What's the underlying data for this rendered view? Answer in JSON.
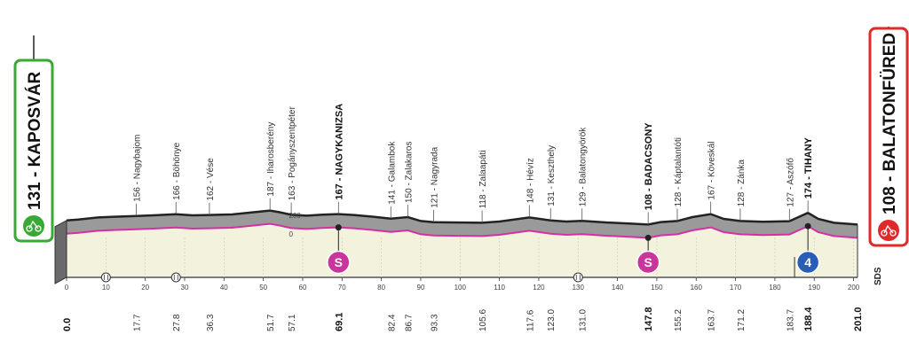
{
  "chart_data": {
    "type": "area",
    "title": "",
    "xlabel": "",
    "ylabel": "",
    "xlim": [
      0,
      201.0
    ],
    "x_ticks": [
      0,
      10,
      20,
      30,
      40,
      50,
      60,
      70,
      80,
      90,
      100,
      110,
      120,
      130,
      140,
      150,
      160,
      170,
      180,
      190,
      200
    ],
    "y_ticks": [
      "200",
      "0"
    ],
    "start": {
      "label": "131 - KAPOSVÁR",
      "color": "#3aa835"
    },
    "finish": {
      "label": "108 - BALATONFÜRED",
      "color": "#e02a2a"
    },
    "profile": [
      [
        0,
        131
      ],
      [
        3,
        136
      ],
      [
        8,
        148
      ],
      [
        12,
        152
      ],
      [
        17.7,
        156
      ],
      [
        22,
        160
      ],
      [
        27.8,
        166
      ],
      [
        32,
        160
      ],
      [
        36.3,
        162
      ],
      [
        42,
        165
      ],
      [
        47,
        176
      ],
      [
        51.7,
        187
      ],
      [
        54,
        178
      ],
      [
        57.1,
        163
      ],
      [
        61,
        158
      ],
      [
        65,
        164
      ],
      [
        69.1,
        167
      ],
      [
        73,
        162
      ],
      [
        78,
        152
      ],
      [
        82.4,
        141
      ],
      [
        86.7,
        150
      ],
      [
        90,
        128
      ],
      [
        93.3,
        121
      ],
      [
        98,
        120
      ],
      [
        105.6,
        118
      ],
      [
        110,
        125
      ],
      [
        117.6,
        148
      ],
      [
        123,
        131
      ],
      [
        127,
        125
      ],
      [
        131,
        129
      ],
      [
        137,
        120
      ],
      [
        143,
        114
      ],
      [
        147.8,
        108
      ],
      [
        151,
        122
      ],
      [
        155.2,
        128
      ],
      [
        159,
        150
      ],
      [
        163.7,
        167
      ],
      [
        167,
        140
      ],
      [
        171.2,
        128
      ],
      [
        177,
        124
      ],
      [
        183.7,
        127
      ],
      [
        186,
        150
      ],
      [
        188.4,
        174
      ],
      [
        191,
        140
      ],
      [
        195,
        118
      ],
      [
        201,
        108
      ]
    ],
    "places": [
      {
        "km": 17.7,
        "alt": 156,
        "name": "156 - Nagybajom",
        "major": false
      },
      {
        "km": 27.8,
        "alt": 166,
        "name": "166 - Böhönye",
        "major": false
      },
      {
        "km": 36.3,
        "alt": 162,
        "name": "162 - Vése",
        "major": false
      },
      {
        "km": 51.7,
        "alt": 187,
        "name": "187 - Iharosberény",
        "major": false
      },
      {
        "km": 57.1,
        "alt": 163,
        "name": "163 - Pogányszentpéter",
        "major": false
      },
      {
        "km": 69.1,
        "alt": 167,
        "name": "167 - NAGYKANIZSA",
        "major": true
      },
      {
        "km": 82.4,
        "alt": 141,
        "name": "141 - Galambok",
        "major": false
      },
      {
        "km": 86.7,
        "alt": 150,
        "name": "150 - Zalakaros",
        "major": false
      },
      {
        "km": 93.3,
        "alt": 121,
        "name": "121 - Nagyrada",
        "major": false
      },
      {
        "km": 105.6,
        "alt": 118,
        "name": "118 - Zalaapáti",
        "major": false
      },
      {
        "km": 117.6,
        "alt": 148,
        "name": "148 - Hévíz",
        "major": false
      },
      {
        "km": 123.0,
        "alt": 131,
        "name": "131 - Keszthely",
        "major": false
      },
      {
        "km": 131.0,
        "alt": 129,
        "name": "129 - Balatongyörök",
        "major": false
      },
      {
        "km": 147.8,
        "alt": 108,
        "name": "108 - BADACSONY",
        "major": true
      },
      {
        "km": 155.2,
        "alt": 128,
        "name": "128 - Káptalantóti",
        "major": false
      },
      {
        "km": 163.7,
        "alt": 167,
        "name": "167 - Köveskál",
        "major": false
      },
      {
        "km": 171.2,
        "alt": 128,
        "name": "128 - Zánka",
        "major": false
      },
      {
        "km": 183.7,
        "alt": 127,
        "name": "127 - Aszófő",
        "major": false
      },
      {
        "km": 188.4,
        "alt": 174,
        "name": "174 - TIHANY",
        "major": true
      }
    ],
    "distance_labels": [
      {
        "km": 0,
        "text": "0.0",
        "major": true
      },
      {
        "km": 17.7,
        "text": "17.7",
        "major": false
      },
      {
        "km": 27.8,
        "text": "27.8",
        "major": false
      },
      {
        "km": 36.3,
        "text": "36.3",
        "major": false
      },
      {
        "km": 51.7,
        "text": "51.7",
        "major": false
      },
      {
        "km": 57.1,
        "text": "57.1",
        "major": false
      },
      {
        "km": 69.1,
        "text": "69.1",
        "major": true
      },
      {
        "km": 82.4,
        "text": "82.4",
        "major": false
      },
      {
        "km": 86.7,
        "text": "86.7",
        "major": false
      },
      {
        "km": 93.3,
        "text": "93.3",
        "major": false
      },
      {
        "km": 105.6,
        "text": "105.6",
        "major": false
      },
      {
        "km": 117.6,
        "text": "117.6",
        "major": false
      },
      {
        "km": 123.0,
        "text": "123.0",
        "major": false
      },
      {
        "km": 131.0,
        "text": "131.0",
        "major": false
      },
      {
        "km": 147.8,
        "text": "147.8",
        "major": true
      },
      {
        "km": 155.2,
        "text": "155.2",
        "major": false
      },
      {
        "km": 163.7,
        "text": "163.7",
        "major": false
      },
      {
        "km": 171.2,
        "text": "171.2",
        "major": false
      },
      {
        "km": 183.7,
        "text": "183.7",
        "major": false
      },
      {
        "km": 188.4,
        "text": "188.4",
        "major": true
      },
      {
        "km": 201.0,
        "text": "201.0",
        "major": true
      }
    ],
    "sprints": [
      {
        "km": 69.1,
        "label": "S",
        "color": "#c8359b"
      },
      {
        "km": 147.8,
        "label": "S",
        "color": "#c8359b"
      }
    ],
    "climbs": [
      {
        "km": 188.4,
        "label": "4",
        "color": "#2a5db5"
      }
    ],
    "refreshments": [
      10,
      27.8,
      130
    ],
    "feed_zone_km": 185,
    "brand": "SDS",
    "colors": {
      "profile_fill": "#9a9a9a",
      "ground_fill": "#f3f3dd",
      "road": "#d62fa6",
      "outline": "#333333"
    }
  }
}
